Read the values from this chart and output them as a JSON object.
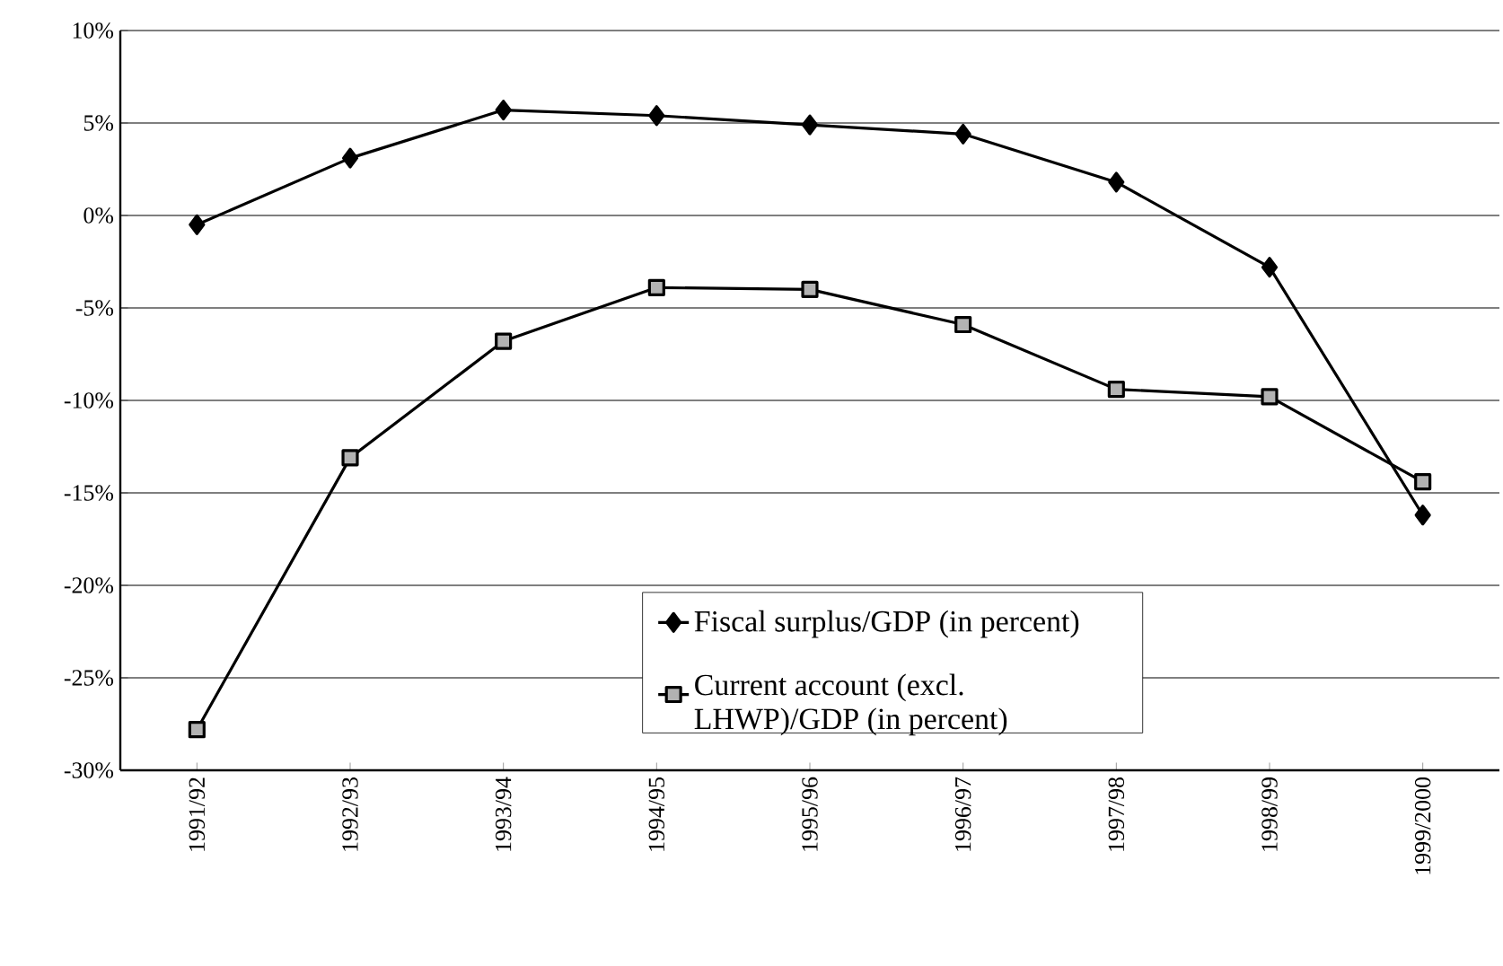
{
  "chart_data": {
    "type": "line",
    "categories": [
      "1991/92",
      "1992/93",
      "1993/94",
      "1994/95",
      "1995/96",
      "1996/97",
      "1997/98",
      "1998/99",
      "1999/2000"
    ],
    "series": [
      {
        "name": "Fiscal surplus/GDP (in percent)",
        "color": "#000000",
        "marker": "diamond",
        "values": [
          -0.5,
          3.1,
          5.7,
          5.4,
          4.9,
          4.4,
          1.8,
          -2.8,
          -16.2
        ]
      },
      {
        "name": "Current account (excl. LHWP)/GDP (in percent)",
        "color": "#000000",
        "marker": "square",
        "values": [
          -27.8,
          -13.1,
          -6.8,
          -3.9,
          -4.0,
          -5.9,
          -9.4,
          -9.8,
          -14.4
        ]
      }
    ],
    "ylim": [
      -30,
      10
    ],
    "yticks": [
      {
        "value": -30,
        "label": "-30%"
      },
      {
        "value": -25,
        "label": "-25%"
      },
      {
        "value": -20,
        "label": "-20%"
      },
      {
        "value": -15,
        "label": "-15%"
      },
      {
        "value": -10,
        "label": "-10%"
      },
      {
        "value": -5,
        "label": "-5%"
      },
      {
        "value": 0,
        "label": "0%"
      },
      {
        "value": 5,
        "label": "5%"
      },
      {
        "value": 10,
        "label": "10%"
      }
    ],
    "grid": "y",
    "legend": "bottom"
  }
}
